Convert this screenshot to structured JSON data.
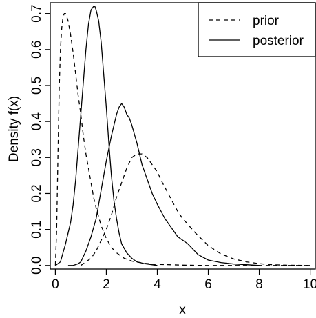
{
  "chart_data": {
    "type": "line",
    "xlabel": "x",
    "ylabel": "Density f(x)",
    "xlim": [
      -0.2,
      10.2
    ],
    "ylim": [
      -0.01,
      0.73
    ],
    "xticks": [
      0,
      2,
      4,
      6,
      8,
      10
    ],
    "xtick_labels": [
      "0",
      "2",
      "4",
      "6",
      "8",
      "10"
    ],
    "yticks": [
      0.0,
      0.1,
      0.2,
      0.3,
      0.4,
      0.5,
      0.6,
      0.7
    ],
    "ytick_labels": [
      "0.0",
      "0.1",
      "0.2",
      "0.3",
      "0.4",
      "0.5",
      "0.6",
      "0.7"
    ],
    "grid": false,
    "legend": {
      "position": "top-right",
      "entries": [
        {
          "label": "prior",
          "style": "dashed"
        },
        {
          "label": "posterior",
          "style": "solid"
        }
      ]
    },
    "series": [
      {
        "style": "dashed",
        "x": [
          0.0,
          0.05,
          0.1,
          0.15,
          0.2,
          0.25,
          0.3,
          0.35,
          0.4,
          0.45,
          0.5,
          0.6,
          0.7,
          0.8,
          0.9,
          1.0,
          1.1,
          1.2,
          1.3,
          1.4,
          1.5,
          1.6,
          1.8,
          2.0,
          2.2,
          2.4,
          2.7,
          3.0,
          3.5,
          4.0,
          5.0,
          6.0,
          8.0,
          10.0
        ],
        "y": [
          0.0,
          0.1,
          0.3,
          0.49,
          0.6,
          0.66,
          0.69,
          0.7,
          0.7,
          0.69,
          0.68,
          0.64,
          0.59,
          0.53,
          0.47,
          0.42,
          0.36,
          0.31,
          0.27,
          0.23,
          0.19,
          0.16,
          0.11,
          0.075,
          0.05,
          0.035,
          0.02,
          0.012,
          0.006,
          0.003,
          0.001,
          0.0,
          0.0,
          0.0
        ]
      },
      {
        "style": "solid",
        "x": [
          0.0,
          0.2,
          0.4,
          0.5,
          0.6,
          0.7,
          0.8,
          0.9,
          1.0,
          1.1,
          1.2,
          1.3,
          1.4,
          1.5,
          1.55,
          1.6,
          1.7,
          1.8,
          1.9,
          2.0,
          2.1,
          2.2,
          2.3,
          2.4,
          2.5,
          2.6,
          2.8,
          3.0,
          3.2,
          3.5,
          4.0
        ],
        "y": [
          0.0,
          0.01,
          0.06,
          0.09,
          0.12,
          0.17,
          0.24,
          0.33,
          0.42,
          0.51,
          0.6,
          0.67,
          0.71,
          0.72,
          0.72,
          0.71,
          0.68,
          0.62,
          0.53,
          0.44,
          0.34,
          0.25,
          0.18,
          0.13,
          0.09,
          0.06,
          0.035,
          0.02,
          0.01,
          0.005,
          0.0
        ]
      },
      {
        "style": "dashed",
        "x": [
          1.0,
          1.2,
          1.4,
          1.6,
          1.8,
          2.0,
          2.2,
          2.4,
          2.6,
          2.8,
          3.0,
          3.2,
          3.4,
          3.6,
          3.8,
          4.0,
          4.2,
          4.5,
          4.8,
          5.0,
          5.5,
          6.0,
          6.5,
          7.0,
          7.5,
          8.0,
          8.5,
          9.0,
          10.0
        ],
        "y": [
          0.0,
          0.01,
          0.02,
          0.04,
          0.07,
          0.1,
          0.14,
          0.19,
          0.23,
          0.27,
          0.3,
          0.31,
          0.31,
          0.3,
          0.28,
          0.26,
          0.23,
          0.19,
          0.15,
          0.13,
          0.09,
          0.055,
          0.032,
          0.018,
          0.01,
          0.005,
          0.002,
          0.001,
          0.0
        ]
      },
      {
        "style": "solid",
        "x": [
          0.5,
          0.7,
          0.9,
          1.0,
          1.2,
          1.4,
          1.6,
          1.8,
          2.0,
          2.2,
          2.4,
          2.5,
          2.6,
          2.7,
          2.8,
          2.9,
          3.0,
          3.2,
          3.4,
          3.6,
          3.8,
          4.0,
          4.3,
          4.6,
          4.8,
          5.0,
          5.1,
          5.2,
          5.4,
          5.6,
          6.0,
          6.5,
          7.0,
          7.5,
          8.0
        ],
        "y": [
          0.0,
          0.0,
          0.005,
          0.01,
          0.04,
          0.08,
          0.13,
          0.21,
          0.29,
          0.36,
          0.42,
          0.44,
          0.45,
          0.44,
          0.42,
          0.41,
          0.39,
          0.34,
          0.28,
          0.24,
          0.2,
          0.17,
          0.13,
          0.1,
          0.08,
          0.07,
          0.065,
          0.06,
          0.045,
          0.03,
          0.015,
          0.008,
          0.004,
          0.002,
          0.0
        ]
      }
    ]
  }
}
